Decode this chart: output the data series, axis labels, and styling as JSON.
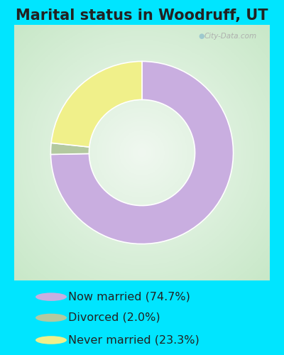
{
  "title": "Marital status in Woodruff, UT",
  "slices": [
    74.7,
    2.0,
    23.3
  ],
  "labels": [
    "Now married (74.7%)",
    "Divorced (2.0%)",
    "Never married (23.3%)"
  ],
  "colors": [
    "#c9aee0",
    "#b3c9a0",
    "#f0f08a"
  ],
  "bg_outer": "#00e5ff",
  "bg_panel_edge": "#c8e8c8",
  "bg_panel_center": "#eaf5ea",
  "donut_width": 0.42,
  "start_angle": 90,
  "title_fontsize": 15,
  "legend_fontsize": 11.5,
  "watermark": "City-Data.com"
}
